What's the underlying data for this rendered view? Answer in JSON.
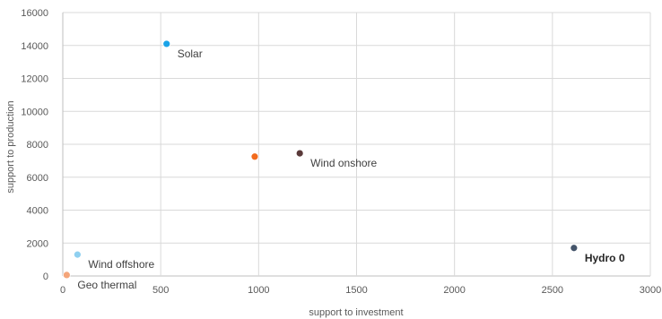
{
  "chart_data": {
    "type": "scatter",
    "xlabel": "support to investment",
    "ylabel": "support to production",
    "xlim": [
      0,
      3000
    ],
    "ylim": [
      0,
      16000
    ],
    "x_ticks": [
      "0",
      "500",
      "1000",
      "1500",
      "2000",
      "2500",
      "3000"
    ],
    "y_ticks": [
      "0",
      "2000",
      "4000",
      "6000",
      "8000",
      "10000",
      "12000",
      "14000",
      "16000"
    ],
    "grid": true,
    "points": [
      {
        "label": "Solar",
        "x": 530,
        "y": 14100,
        "color": "#1aa3e8"
      },
      {
        "label": "",
        "x": 980,
        "y": 7250,
        "color": "#f26b1d"
      },
      {
        "label": "Wind onshore",
        "x": 1210,
        "y": 7450,
        "color": "#5a3a3a"
      },
      {
        "label": "Wind offshore",
        "x": 75,
        "y": 1300,
        "color": "#8fd0f0"
      },
      {
        "label": "Geo thermal",
        "x": 20,
        "y": 60,
        "color": "#f4a57a"
      },
      {
        "label": "Hydro 0",
        "x": 2610,
        "y": 1700,
        "color": "#44546a"
      }
    ]
  }
}
